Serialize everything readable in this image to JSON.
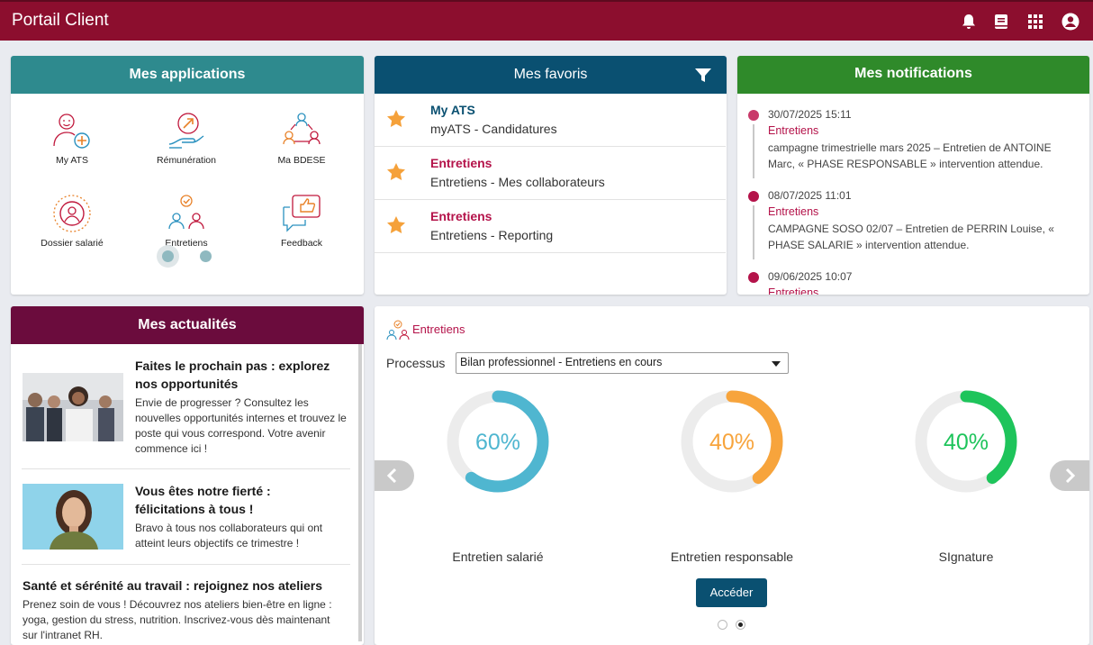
{
  "header": {
    "title": "Portail Client",
    "icons": [
      "bell-icon",
      "book-icon",
      "apps-grid-icon",
      "user-circle-icon"
    ]
  },
  "applications": {
    "title": "Mes applications",
    "items": [
      {
        "label": "My ATS",
        "icon": "user-add-icon"
      },
      {
        "label": "Rémunération",
        "icon": "salary-hand-icon"
      },
      {
        "label": "Ma BDESE",
        "icon": "network-people-icon"
      },
      {
        "label": "Dossier salarié",
        "icon": "employee-file-icon"
      },
      {
        "label": "Entretiens",
        "icon": "meeting-icon"
      },
      {
        "label": "Feedback",
        "icon": "thumbs-up-chat-icon"
      }
    ],
    "pages": 2,
    "active_page": 1
  },
  "favorites": {
    "title": "Mes favoris",
    "items": [
      {
        "title": "My ATS",
        "subtitle": "myATS - Candidatures",
        "title_color": "#0a5071"
      },
      {
        "title": "Entretiens",
        "subtitle": "Entretiens - Mes collaborateurs",
        "title_color": "#b4134a"
      },
      {
        "title": "Entretiens",
        "subtitle": "Entretiens - Reporting",
        "title_color": "#b4134a"
      }
    ]
  },
  "notifications": {
    "title": "Mes notifications",
    "items": [
      {
        "time": "30/07/2025 15:11",
        "category": "Entretiens",
        "text": "campagne trimestrielle mars 2025 – Entretien de ANTOINE Marc, « PHASE RESPONSABLE » intervention attendue."
      },
      {
        "time": "08/07/2025 11:01",
        "category": "Entretiens",
        "text": "CAMPAGNE SOSO 02/07 – Entretien de PERRIN Louise, « PHASE SALARIE » intervention attendue."
      },
      {
        "time": "09/06/2025 10:07",
        "category": "Entretiens",
        "text": ""
      }
    ]
  },
  "news": {
    "title": "Mes actualités",
    "items": [
      {
        "title": "Faites le prochain pas : explorez nos opportunités",
        "text": "Envie de progresser ? Consultez les nouvelles opportunités internes et trouvez le poste qui vous correspond. Votre avenir commence ici !"
      },
      {
        "title": "Vous êtes notre fierté : félicitations à tous !",
        "text": "Bravo à tous nos collaborateurs qui ont atteint leurs objectifs ce trimestre !"
      },
      {
        "title": "Santé et sérénité au travail : rejoignez nos ateliers",
        "text": "Prenez soin de vous ! Découvrez nos ateliers bien-être en ligne : yoga, gestion du stress, nutrition. Inscrivez-vous dès maintenant sur l'intranet RH."
      }
    ]
  },
  "interviews": {
    "title": "Entretiens",
    "process_label": "Processus",
    "process_value": "Bilan professionnel - Entretiens en cours",
    "gauges": [
      {
        "label": "Entretien salarié",
        "percent": 60,
        "display": "60%",
        "color": "#4fb6d0"
      },
      {
        "label": "Entretien responsable",
        "percent": 40,
        "display": "40%",
        "color": "#f7a43c"
      },
      {
        "label": "SIgnature",
        "percent": 40,
        "display": "40%",
        "color": "#1ec45b"
      }
    ],
    "button": "Accéder",
    "pages": 2,
    "active_page": 2
  },
  "colors": {
    "header": "#8c0e2e",
    "applications": "#2e8a8e",
    "favorites": "#0a5071",
    "notifications": "#2f8a2a",
    "news": "#6b0c3d",
    "button": "#0a5071"
  }
}
